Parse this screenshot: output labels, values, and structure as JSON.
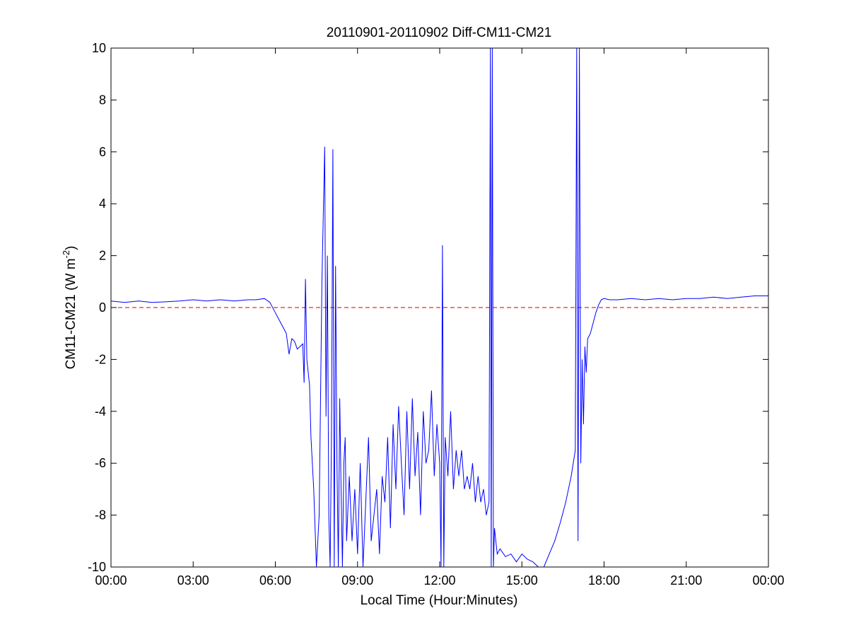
{
  "chart_data": {
    "type": "line",
    "title": "20110901-20110902 Diff-CM11-CM21",
    "xlabel": "Local Time (Hour:Minutes)",
    "ylabel": {
      "main": "CM11-CM21 (W m",
      "superscript": "-2",
      "close": ")"
    },
    "xlim": [
      0,
      24
    ],
    "ylim": [
      -10,
      10
    ],
    "x_unit": "hours",
    "x_ticks": [
      0,
      3,
      6,
      9,
      12,
      15,
      18,
      21,
      24
    ],
    "x_tick_labels": [
      "00:00",
      "03:00",
      "06:00",
      "09:00",
      "12:00",
      "15:00",
      "18:00",
      "21:00",
      "00:00"
    ],
    "y_ticks": [
      -10,
      -8,
      -6,
      -4,
      -2,
      0,
      2,
      4,
      6,
      8,
      10
    ],
    "y_tick_labels": [
      "-10",
      "-8",
      "-6",
      "-4",
      "-2",
      "0",
      "2",
      "4",
      "6",
      "8",
      "10"
    ],
    "grid": false,
    "reference_line": {
      "y": 0,
      "color": "#cc0000",
      "style": "dashed"
    },
    "series": [
      {
        "color": "#0000ff",
        "x": [
          0.0,
          0.5,
          1.0,
          1.5,
          2.0,
          2.5,
          3.0,
          3.5,
          4.0,
          4.5,
          5.0,
          5.3,
          5.6,
          5.8,
          6.0,
          6.2,
          6.4,
          6.5,
          6.6,
          6.7,
          6.8,
          6.9,
          7.0,
          7.05,
          7.1,
          7.15,
          7.2,
          7.25,
          7.3,
          7.4,
          7.5,
          7.6,
          7.7,
          7.8,
          7.85,
          7.9,
          7.95,
          8.0,
          8.05,
          8.1,
          8.15,
          8.2,
          8.25,
          8.3,
          8.35,
          8.4,
          8.45,
          8.5,
          8.55,
          8.6,
          8.7,
          8.8,
          8.9,
          9.0,
          9.1,
          9.2,
          9.3,
          9.4,
          9.5,
          9.6,
          9.7,
          9.8,
          9.9,
          10.0,
          10.1,
          10.2,
          10.3,
          10.4,
          10.5,
          10.6,
          10.7,
          10.8,
          10.9,
          11.0,
          11.1,
          11.2,
          11.3,
          11.4,
          11.5,
          11.6,
          11.7,
          11.8,
          11.9,
          12.0,
          12.05,
          12.1,
          12.15,
          12.2,
          12.3,
          12.4,
          12.5,
          12.6,
          12.7,
          12.8,
          12.9,
          13.0,
          13.1,
          13.2,
          13.3,
          13.4,
          13.5,
          13.6,
          13.7,
          13.8,
          13.85,
          13.88,
          13.92,
          13.96,
          14.0,
          14.05,
          14.1,
          14.2,
          14.4,
          14.6,
          14.8,
          15.0,
          15.2,
          15.4,
          15.6,
          15.8,
          16.0,
          16.2,
          16.4,
          16.6,
          16.8,
          16.95,
          17.0,
          17.05,
          17.1,
          17.15,
          17.2,
          17.25,
          17.3,
          17.35,
          17.4,
          17.5,
          17.6,
          17.7,
          17.8,
          17.9,
          18.0,
          18.2,
          18.5,
          19.0,
          19.5,
          20.0,
          20.5,
          21.0,
          21.5,
          22.0,
          22.5,
          23.0,
          23.5,
          24.0
        ],
        "y": [
          0.25,
          0.2,
          0.25,
          0.2,
          0.22,
          0.25,
          0.3,
          0.25,
          0.3,
          0.25,
          0.3,
          0.3,
          0.35,
          0.2,
          -0.2,
          -0.6,
          -1.0,
          -1.8,
          -1.2,
          -1.3,
          -1.6,
          -1.5,
          -1.4,
          -2.9,
          1.1,
          -2.0,
          -2.5,
          -3.0,
          -5.0,
          -7.0,
          -10.0,
          -8.0,
          1.0,
          6.2,
          -4.2,
          2.0,
          -8.0,
          -10.0,
          -5.0,
          6.1,
          -10.0,
          1.6,
          -6.0,
          -10.0,
          -3.5,
          -7.0,
          -10.0,
          -6.0,
          -5.0,
          -9.0,
          -6.5,
          -9.0,
          -7.0,
          -9.5,
          -6.0,
          -10.0,
          -7.5,
          -5.0,
          -9.0,
          -8.0,
          -7.0,
          -9.5,
          -6.5,
          -7.5,
          -5.0,
          -8.5,
          -4.5,
          -7.0,
          -3.8,
          -6.0,
          -8.0,
          -4.0,
          -7.0,
          -3.5,
          -6.5,
          -4.8,
          -8.0,
          -4.0,
          -6.0,
          -5.5,
          -3.2,
          -6.5,
          -4.5,
          -6.0,
          -10.0,
          2.4,
          -10.0,
          -5.0,
          -6.5,
          -4.0,
          -7.0,
          -5.5,
          -6.5,
          -5.5,
          -7.0,
          -6.5,
          -7.0,
          -6.0,
          -7.5,
          -6.5,
          -7.5,
          -7.0,
          -8.0,
          -7.5,
          10.0,
          -10.0,
          10.0,
          -10.0,
          -8.5,
          -9.0,
          -9.5,
          -9.3,
          -9.6,
          -9.5,
          -9.8,
          -9.5,
          -9.7,
          -9.8,
          -10.0,
          -10.0,
          -9.5,
          -9.0,
          -8.3,
          -7.5,
          -6.5,
          -5.5,
          10.0,
          -9.0,
          10.0,
          -6.0,
          -2.0,
          -4.5,
          -1.5,
          -2.5,
          -1.2,
          -1.0,
          -0.6,
          -0.2,
          0.1,
          0.3,
          0.35,
          0.3,
          0.3,
          0.35,
          0.3,
          0.35,
          0.3,
          0.35,
          0.35,
          0.4,
          0.35,
          0.4,
          0.45,
          0.45
        ]
      }
    ]
  }
}
